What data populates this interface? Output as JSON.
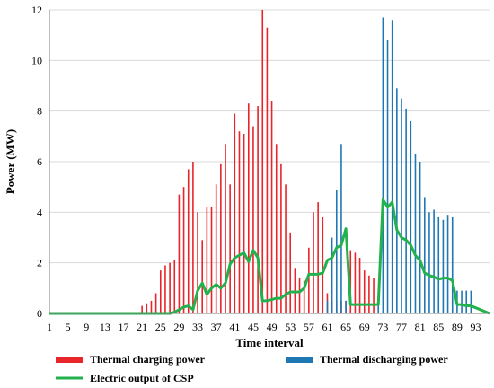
{
  "chart_data": {
    "type": "bar",
    "title": "",
    "xlabel": "Time interval",
    "ylabel": "Power (MW)",
    "ylim": [
      0,
      12
    ],
    "yticks": [
      0,
      2,
      4,
      6,
      8,
      10,
      12
    ],
    "xlim": [
      1,
      96
    ],
    "xticks": [
      1,
      5,
      9,
      13,
      17,
      21,
      25,
      29,
      33,
      37,
      41,
      45,
      49,
      53,
      57,
      61,
      65,
      69,
      73,
      77,
      81,
      85,
      89,
      93
    ],
    "grid": "horizontal",
    "legend_position": "bottom",
    "colors": {
      "charging": "#e8252a",
      "discharging": "#1f77b4",
      "electric": "#22b14c",
      "grid": "#d9d9d9",
      "axis": "#7f7f7f"
    },
    "series": [
      {
        "name": "Thermal charging power",
        "type": "bar",
        "x": [
          21,
          22,
          23,
          24,
          25,
          26,
          27,
          28,
          29,
          30,
          31,
          32,
          33,
          34,
          35,
          36,
          37,
          38,
          39,
          40,
          41,
          42,
          43,
          44,
          45,
          46,
          47,
          48,
          49,
          50,
          51,
          52,
          53,
          54,
          55,
          56,
          57,
          58,
          59,
          60,
          61,
          62,
          63,
          64,
          65,
          66,
          67,
          68,
          69,
          70,
          71
        ],
        "values": [
          0.3,
          0.4,
          0.5,
          0.8,
          1.7,
          1.9,
          2.0,
          2.1,
          4.7,
          5.0,
          5.7,
          6.0,
          4.0,
          2.9,
          4.2,
          4.2,
          5.1,
          5.9,
          6.7,
          5.1,
          7.9,
          7.2,
          7.1,
          8.3,
          7.4,
          8.2,
          12.0,
          11.3,
          8.4,
          6.7,
          5.9,
          5.1,
          3.2,
          1.8,
          1.4,
          1.3,
          2.6,
          4.0,
          4.4,
          3.8,
          0.8,
          0.5,
          0.5,
          0.5,
          0.5,
          2.5,
          2.4,
          2.2,
          1.7,
          1.5,
          1.4
        ]
      },
      {
        "name": "Thermal discharging power",
        "type": "bar",
        "x": [
          61,
          62,
          63,
          64,
          65,
          72,
          73,
          74,
          75,
          76,
          77,
          78,
          79,
          80,
          81,
          82,
          83,
          84,
          85,
          86,
          87,
          88,
          89,
          90,
          91,
          92
        ],
        "values": [
          0.5,
          3.0,
          4.9,
          6.7,
          0.5,
          0.5,
          11.7,
          10.8,
          11.6,
          8.9,
          8.5,
          8.1,
          7.6,
          6.3,
          6.0,
          4.6,
          4.0,
          4.1,
          3.8,
          3.7,
          3.9,
          3.8,
          0.9,
          0.9,
          0.9,
          0.9
        ]
      },
      {
        "name": "Electric output of CSP",
        "type": "line",
        "x": [
          1,
          20,
          26,
          27,
          28,
          29,
          30,
          31,
          32,
          33,
          34,
          35,
          36,
          37,
          38,
          39,
          40,
          41,
          42,
          43,
          44,
          45,
          46,
          47,
          48,
          49,
          50,
          51,
          52,
          53,
          54,
          55,
          56,
          57,
          58,
          59,
          60,
          61,
          62,
          63,
          64,
          65,
          66,
          67,
          68,
          69,
          70,
          71,
          72,
          73,
          74,
          75,
          76,
          77,
          78,
          79,
          80,
          81,
          82,
          83,
          84,
          85,
          86,
          87,
          88,
          89,
          90,
          91,
          92,
          96
        ],
        "values": [
          0,
          0,
          0,
          0,
          0.05,
          0.15,
          0.25,
          0.3,
          0.15,
          0.9,
          1.2,
          0.75,
          1.0,
          1.15,
          1.0,
          1.2,
          1.95,
          2.2,
          2.3,
          2.4,
          2.05,
          2.5,
          2.2,
          0.5,
          0.5,
          0.55,
          0.6,
          0.6,
          0.75,
          0.85,
          0.85,
          0.85,
          1.0,
          1.55,
          1.55,
          1.55,
          1.6,
          2.1,
          2.2,
          2.6,
          2.7,
          3.35,
          0.35,
          0.35,
          0.35,
          0.35,
          0.35,
          0.35,
          0.35,
          4.5,
          4.2,
          4.4,
          3.3,
          3.0,
          2.9,
          2.7,
          2.3,
          2.1,
          1.6,
          1.5,
          1.45,
          1.35,
          1.4,
          1.4,
          1.3,
          0.35,
          0.35,
          0.3,
          0.3,
          0
        ]
      }
    ]
  }
}
